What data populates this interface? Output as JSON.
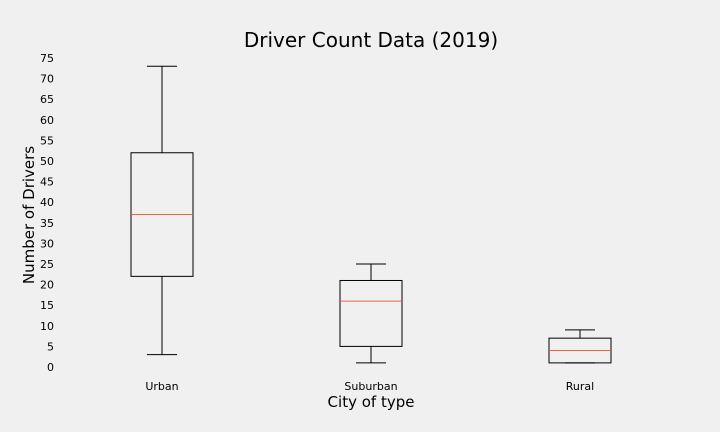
{
  "chart_data": {
    "type": "boxplot",
    "title": "Driver Count Data (2019)",
    "xlabel": "City of type",
    "ylabel": "Number of Drivers",
    "ylim": [
      0,
      75
    ],
    "yticks": [
      0,
      5,
      10,
      15,
      20,
      25,
      30,
      35,
      40,
      45,
      50,
      55,
      60,
      65,
      70,
      75
    ],
    "grid": false,
    "categories": [
      "Urban",
      "Suburban",
      "Rural"
    ],
    "boxes": [
      {
        "category": "Urban",
        "whisker_low": 3,
        "q1": 22,
        "median": 37,
        "q3": 52,
        "whisker_high": 73
      },
      {
        "category": "Suburban",
        "whisker_low": 1,
        "q1": 5,
        "median": 16,
        "q3": 21,
        "whisker_high": 25
      },
      {
        "category": "Rural",
        "whisker_low": 1,
        "q1": 1,
        "median": 4,
        "q3": 7,
        "whisker_high": 9
      }
    ],
    "colors": {
      "box": "#000000",
      "median": "#e8643c",
      "background": "#f0f0f0"
    }
  }
}
